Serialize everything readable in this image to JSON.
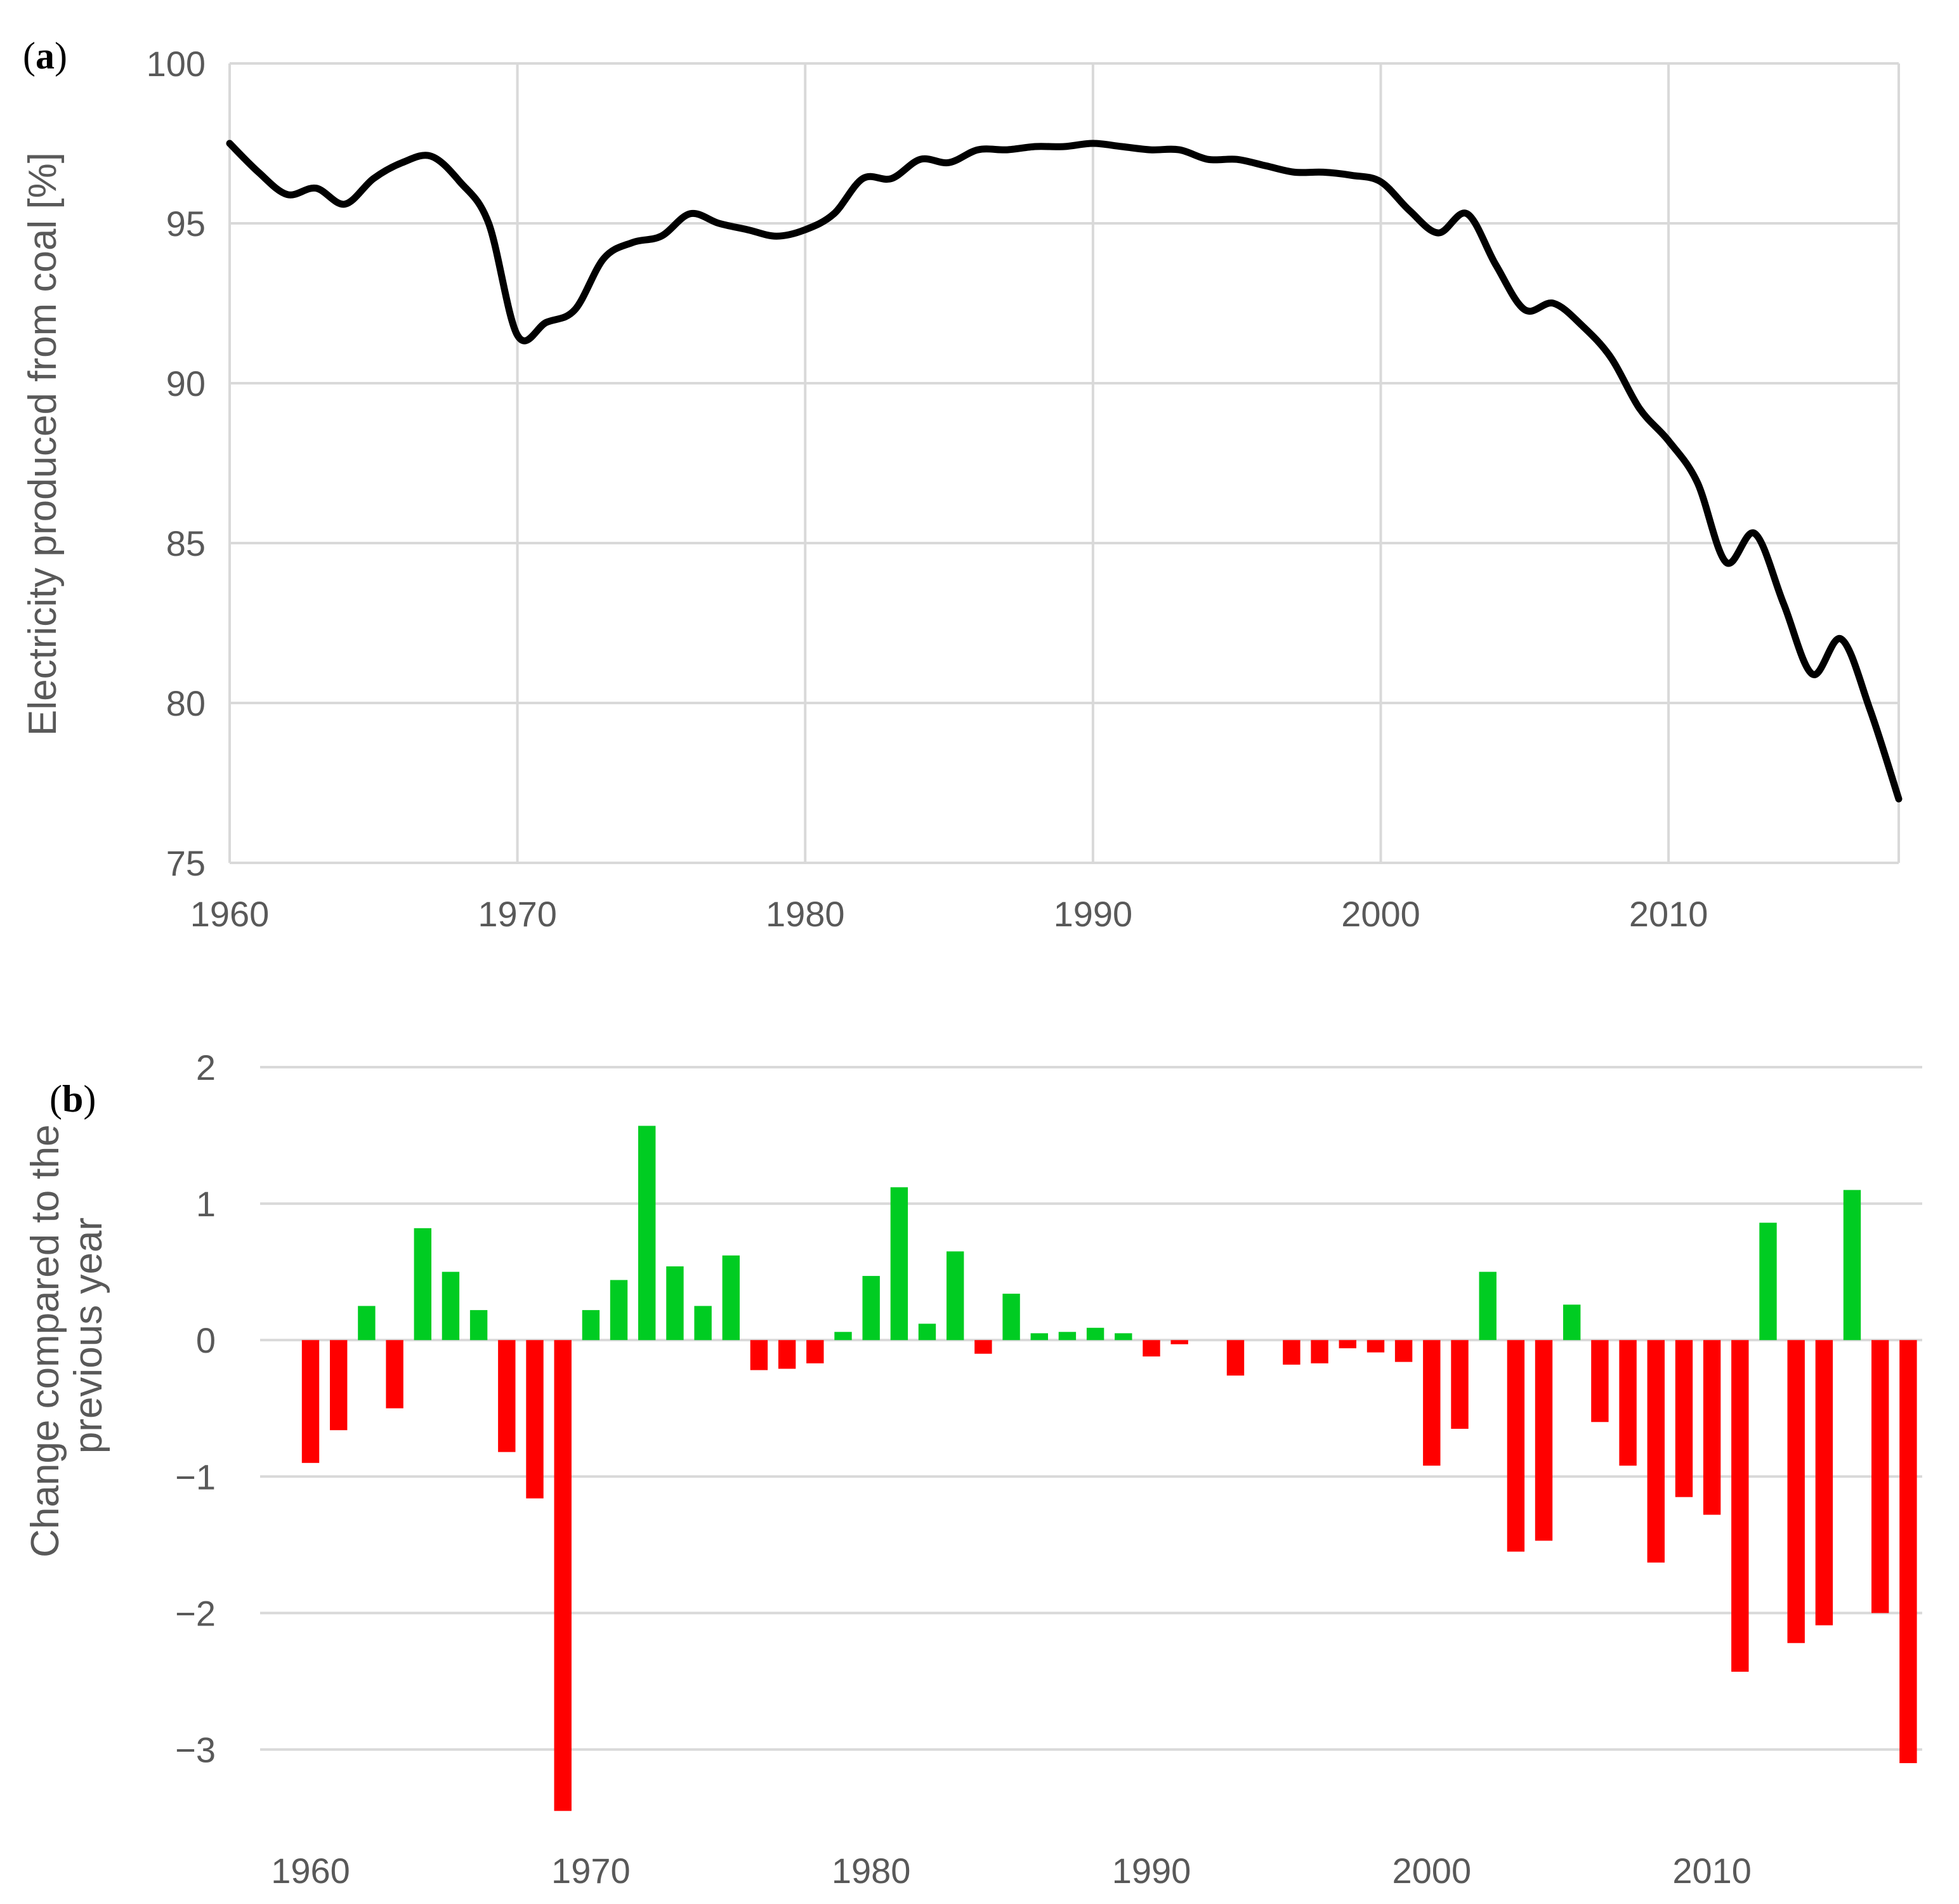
{
  "chart_data": [
    {
      "type": "line",
      "panel_label": "a",
      "title": "",
      "xlabel": "",
      "ylabel": "Electricity produced from coal [%]",
      "xlim": [
        1960,
        2018
      ],
      "ylim": [
        75,
        100
      ],
      "xticks": [
        "1960",
        "1970",
        "1980",
        "1990",
        "2000",
        "2010"
      ],
      "yticks": [
        "100",
        "95",
        "90",
        "85",
        "80",
        "75"
      ],
      "grid": true,
      "line_color": "#000000",
      "x": [
        1960,
        1961,
        1962,
        1963,
        1964,
        1965,
        1966,
        1967,
        1968,
        1969,
        1970,
        1971,
        1972,
        1973,
        1974,
        1975,
        1976,
        1977,
        1978,
        1979,
        1980,
        1981,
        1982,
        1983,
        1984,
        1985,
        1986,
        1987,
        1988,
        1989,
        1990,
        1991,
        1992,
        1993,
        1994,
        1995,
        1996,
        1997,
        1998,
        1999,
        2000,
        2001,
        2002,
        2003,
        2004,
        2005,
        2006,
        2007,
        2008,
        2009,
        2010,
        2011,
        2012,
        2013,
        2014,
        2015,
        2016,
        2017,
        2018
      ],
      "y": [
        97.5,
        96.6,
        95.9,
        96.1,
        95.6,
        96.4,
        96.9,
        97.1,
        96.3,
        95.0,
        91.5,
        91.9,
        92.3,
        93.9,
        94.4,
        94.6,
        95.3,
        95.0,
        94.8,
        94.6,
        94.8,
        95.3,
        96.4,
        96.4,
        97.0,
        96.9,
        97.3,
        97.3,
        97.4,
        97.4,
        97.5,
        97.4,
        97.3,
        97.3,
        97.0,
        97.0,
        96.8,
        96.6,
        96.6,
        96.5,
        96.3,
        95.4,
        94.7,
        95.3,
        93.7,
        92.3,
        92.5,
        91.8,
        90.8,
        89.2,
        88.2,
        86.9,
        84.4,
        85.3,
        83.1,
        80.9,
        82.0,
        79.8,
        77.0
      ]
    },
    {
      "type": "bar",
      "panel_label": "b",
      "title": "",
      "xlabel": "",
      "ylabel": "Change compared to the previous year",
      "ylabel_lines": [
        "Change compared to the",
        "previous year"
      ],
      "xlim": [
        1958.2,
        2017.5
      ],
      "ylim": [
        -3.5,
        2
      ],
      "xticks": [
        "1960",
        "1970",
        "1980",
        "1990",
        "2000",
        "2010"
      ],
      "yticks": [
        "2",
        "1",
        "0",
        "−1",
        "−2",
        "−3"
      ],
      "grid": true,
      "positive_color": "#00cc22",
      "negative_color": "#ff0000",
      "x": [
        1960,
        1961,
        1962,
        1963,
        1964,
        1965,
        1966,
        1967,
        1968,
        1969,
        1970,
        1971,
        1972,
        1973,
        1974,
        1975,
        1976,
        1977,
        1978,
        1979,
        1980,
        1981,
        1982,
        1983,
        1984,
        1985,
        1986,
        1987,
        1988,
        1989,
        1990,
        1991,
        1992,
        1993,
        1994,
        1995,
        1996,
        1997,
        1998,
        1999,
        2000,
        2001,
        2002,
        2003,
        2004,
        2005,
        2006,
        2007,
        2008,
        2009,
        2010,
        2011,
        2012,
        2013,
        2014,
        2015,
        2016,
        2017
      ],
      "values": [
        -0.9,
        -0.66,
        0.25,
        -0.5,
        0.82,
        0.5,
        0.22,
        -0.82,
        -1.16,
        -3.45,
        0.22,
        0.44,
        1.57,
        0.54,
        0.25,
        0.62,
        -0.22,
        -0.21,
        -0.17,
        0.06,
        0.47,
        1.12,
        0.12,
        0.65,
        -0.1,
        0.34,
        0.05,
        0.06,
        0.09,
        0.05,
        -0.12,
        -0.03,
        0.0,
        -0.26,
        0.0,
        -0.18,
        -0.17,
        -0.06,
        -0.09,
        -0.16,
        -0.92,
        -0.65,
        0.5,
        -1.55,
        -1.47,
        0.26,
        -0.6,
        -0.92,
        -1.63,
        -1.15,
        -1.28,
        -2.43,
        0.86,
        -2.22,
        -2.09,
        1.1,
        -2.0,
        -3.1
      ]
    }
  ]
}
